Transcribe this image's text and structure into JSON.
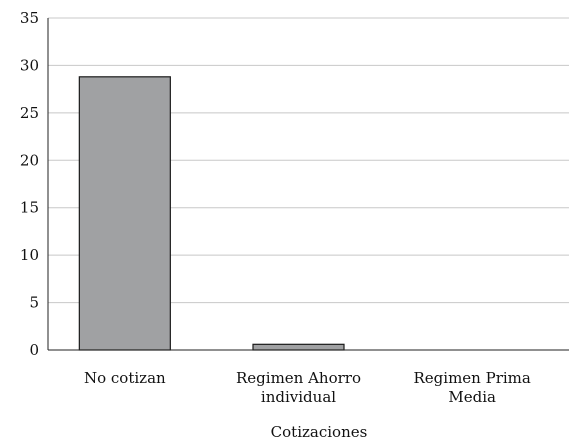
{
  "chart_data": {
    "type": "bar",
    "categories": [
      [
        "No cotizan"
      ],
      [
        "Regimen Ahorro",
        "individual"
      ],
      [
        "Regimen Prima",
        "Media"
      ]
    ],
    "values": [
      28.8,
      0.6,
      0
    ],
    "xlabel": "Cotizaciones",
    "ylabel": "",
    "ylim": [
      0,
      35
    ],
    "yticks": [
      "0",
      "5",
      "10",
      "15",
      "20",
      "25",
      "30",
      "35"
    ],
    "grid": true,
    "legend": "none",
    "bar_color": "#a0a1a3",
    "bar_edge_color": "#1a1a1a",
    "grid_color": "#c8c8c8"
  }
}
